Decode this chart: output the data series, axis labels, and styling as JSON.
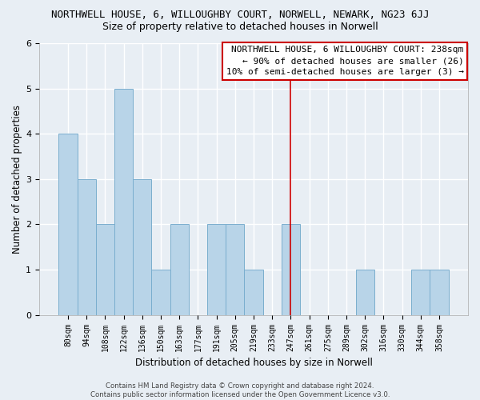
{
  "title": "NORTHWELL HOUSE, 6, WILLOUGHBY COURT, NORWELL, NEWARK, NG23 6JJ",
  "subtitle": "Size of property relative to detached houses in Norwell",
  "xlabel": "Distribution of detached houses by size in Norwell",
  "ylabel": "Number of detached properties",
  "categories": [
    "80sqm",
    "94sqm",
    "108sqm",
    "122sqm",
    "136sqm",
    "150sqm",
    "163sqm",
    "177sqm",
    "191sqm",
    "205sqm",
    "219sqm",
    "233sqm",
    "247sqm",
    "261sqm",
    "275sqm",
    "289sqm",
    "302sqm",
    "316sqm",
    "330sqm",
    "344sqm",
    "358sqm"
  ],
  "values": [
    4,
    3,
    2,
    5,
    3,
    1,
    2,
    0,
    2,
    2,
    1,
    0,
    2,
    0,
    0,
    0,
    1,
    0,
    0,
    1,
    1
  ],
  "bar_color": "#b8d4e8",
  "bar_edge_color": "#7aaece",
  "vline_color": "#cc0000",
  "vline_x": 12.0,
  "ylim": [
    0,
    6
  ],
  "yticks": [
    0,
    1,
    2,
    3,
    4,
    5,
    6
  ],
  "annotation_title": "NORTHWELL HOUSE, 6 WILLOUGHBY COURT: 238sqm",
  "annotation_line2": "← 90% of detached houses are smaller (26)",
  "annotation_line3": "10% of semi-detached houses are larger (3) →",
  "footer_line1": "Contains HM Land Registry data © Crown copyright and database right 2024.",
  "footer_line2": "Contains public sector information licensed under the Open Government Licence v3.0.",
  "bg_color": "#e8eef4",
  "plot_bg_color": "#e8eef4",
  "grid_color": "white",
  "title_fontsize": 9,
  "subtitle_fontsize": 9,
  "ylabel_fontsize": 8.5,
  "xlabel_fontsize": 8.5,
  "tick_fontsize": 7,
  "ann_fontsize": 8,
  "footer_fontsize": 6.2
}
